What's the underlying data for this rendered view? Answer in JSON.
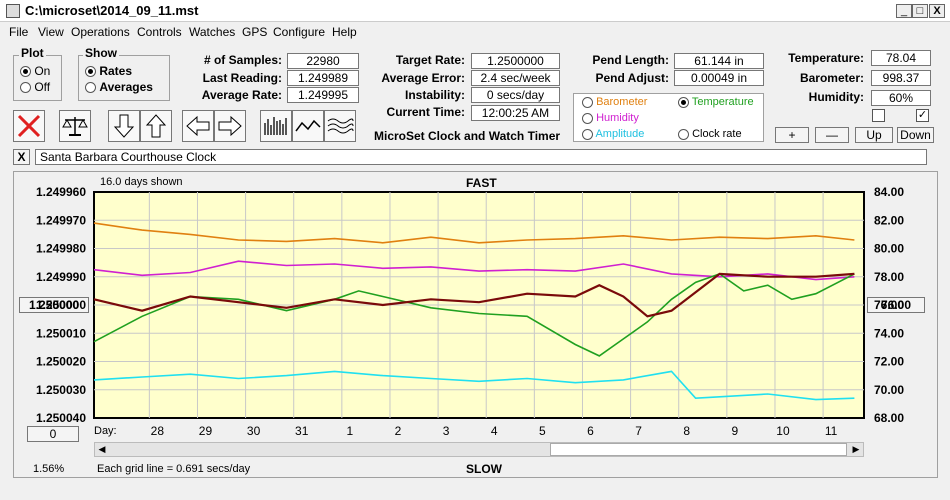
{
  "window": {
    "title": "C:\\microset\\2014_09_11.mst",
    "minimize": "_",
    "maximize": "□",
    "close": "X"
  },
  "menu": [
    "File",
    "View",
    "Operations",
    "Controls",
    "Watches",
    "GPS",
    "Configure",
    "Help"
  ],
  "plot_group": {
    "label": "Plot",
    "on": "On",
    "off": "Off",
    "selected": "On"
  },
  "show_group": {
    "label": "Show",
    "rates": "Rates",
    "averages": "Averages",
    "selected": "Rates"
  },
  "stats": {
    "samples_label": "# of Samples:",
    "samples": "22980",
    "last_reading_label": "Last Reading:",
    "last_reading": "1.249989",
    "average_rate_label": "Average Rate:",
    "average_rate": "1.249995",
    "target_rate_label": "Target Rate:",
    "target_rate": "1.2500000",
    "average_error_label": "Average Error:",
    "average_error": "2.4 sec/week",
    "instability_label": "Instability:",
    "instability": "0 secs/day",
    "current_time_label": "Current Time:",
    "current_time": "12:00:25 AM",
    "pend_length_label": "Pend Length:",
    "pend_length": "61.144 in",
    "pend_adjust_label": "Pend Adjust:",
    "pend_adjust": "0.00049 in",
    "temperature_label": "Temperature:",
    "temperature": "78.04",
    "barometer_label": "Barometer:",
    "barometer": "998.37",
    "humidity_label": "Humidity:",
    "humidity": "60%"
  },
  "app_name": "MicroSet Clock and Watch Timer",
  "sensor_select": {
    "barometer": "Barometer",
    "temperature": "Temperature",
    "humidity": "Humidity",
    "amplitude": "Amplitude",
    "clock_rate": "Clock rate",
    "selected": "Temperature",
    "colors": {
      "barometer": "#e08010",
      "temperature": "#20a020",
      "humidity": "#d020d0",
      "amplitude": "#20d0e0",
      "clock_rate": "#000000"
    }
  },
  "adjust_buttons": {
    "plus": "+",
    "minus": "—",
    "up": "Up",
    "down": "Down"
  },
  "checkboxes": {
    "left": "",
    "right": "✓"
  },
  "clock_name": "Santa Barbara Courthouse Clock",
  "close_x": "X",
  "chart": {
    "days_shown": "16.0 days shown",
    "fast": "FAST",
    "slow": "SLOW",
    "grid_note": "Each grid line = 0.691 secs/day",
    "zoom": "1.56%",
    "left_value_box": "1.250000",
    "right_value_box": "76.00",
    "scroll_box": "0",
    "day_label": "Day:"
  },
  "chart_data": {
    "type": "line",
    "yleft_ticks": [
      "1.249960",
      "1.249970",
      "1.249980",
      "1.249990",
      "1.250000",
      "1.250010",
      "1.250020",
      "1.250030",
      "1.250040"
    ],
    "yright_ticks": [
      "84.00",
      "82.00",
      "80.00",
      "78.00",
      "76.00",
      "74.00",
      "72.00",
      "70.00",
      "68.00"
    ],
    "yleft_range": [
      1.24996,
      1.25004
    ],
    "yright_range": [
      68,
      84
    ],
    "x_ticks": [
      "28",
      "29",
      "30",
      "31",
      "1",
      "2",
      "3",
      "4",
      "5",
      "6",
      "7",
      "8",
      "9",
      "10",
      "11"
    ],
    "x_range": [
      0,
      16
    ],
    "x_tick_positions": [
      1.15,
      2.15,
      3.15,
      4.15,
      5.15,
      6.15,
      7.15,
      8.15,
      9.15,
      10.15,
      11.15,
      12.15,
      13.15,
      14.15,
      15.15
    ],
    "series": [
      {
        "color": "#e08010",
        "axis": "right",
        "x": [
          0,
          1,
          2,
          3,
          4,
          5,
          6,
          7,
          8,
          9,
          10,
          11,
          12,
          13,
          14,
          15,
          15.8
        ],
        "values": [
          81.8,
          81.3,
          81.0,
          80.6,
          80.5,
          80.7,
          80.4,
          80.8,
          80.4,
          80.6,
          80.7,
          80.9,
          80.6,
          80.8,
          80.7,
          80.9,
          80.6
        ]
      },
      {
        "color": "#d020d0",
        "axis": "right",
        "x": [
          0,
          1,
          2,
          3,
          4,
          5,
          6,
          7,
          8,
          9,
          10,
          11,
          12,
          13,
          14,
          15,
          15.8
        ],
        "values": [
          78.5,
          78.1,
          78.3,
          79.1,
          78.8,
          78.9,
          78.6,
          78.7,
          78.4,
          78.5,
          78.4,
          78.9,
          78.2,
          78.0,
          78.2,
          77.8,
          78.0
        ]
      },
      {
        "color": "#20a020",
        "axis": "left",
        "x": [
          0,
          1,
          2,
          3,
          4,
          5,
          5.5,
          6,
          7,
          8,
          9,
          10,
          10.5,
          11,
          11.5,
          12,
          12.5,
          13,
          13.5,
          14,
          14.5,
          15,
          15.8
        ],
        "values": [
          1.250013,
          1.250004,
          1.249997,
          1.249998,
          1.250002,
          1.249998,
          1.249995,
          1.249997,
          1.250001,
          1.250003,
          1.250004,
          1.250014,
          1.250018,
          1.250012,
          1.250006,
          1.249998,
          1.249992,
          1.249989,
          1.249995,
          1.249993,
          1.249998,
          1.249996,
          1.249989
        ]
      },
      {
        "color": "#20e0f0",
        "axis": "right",
        "x": [
          0,
          1,
          2,
          3,
          4,
          5,
          6,
          7,
          8,
          9,
          10,
          11,
          12,
          12.5,
          13,
          14,
          15,
          15.8
        ],
        "values": [
          70.7,
          70.9,
          71.1,
          70.8,
          71.0,
          71.3,
          71.0,
          70.8,
          70.6,
          70.8,
          70.5,
          70.7,
          71.3,
          69.4,
          69.5,
          69.7,
          69.3,
          69.4
        ]
      },
      {
        "color": "#7a0a0a",
        "axis": "left",
        "x": [
          0,
          1,
          2,
          3,
          4,
          5,
          6,
          7,
          8,
          9,
          10,
          10.5,
          11,
          11.5,
          12,
          13,
          14,
          15,
          15.8
        ],
        "values": [
          1.249998,
          1.250002,
          1.249997,
          1.249999,
          1.250001,
          1.249998,
          1.25,
          1.249998,
          1.249999,
          1.249996,
          1.249997,
          1.249993,
          1.249997,
          1.250004,
          1.250002,
          1.249989,
          1.24999,
          1.24999,
          1.249989
        ]
      }
    ]
  }
}
